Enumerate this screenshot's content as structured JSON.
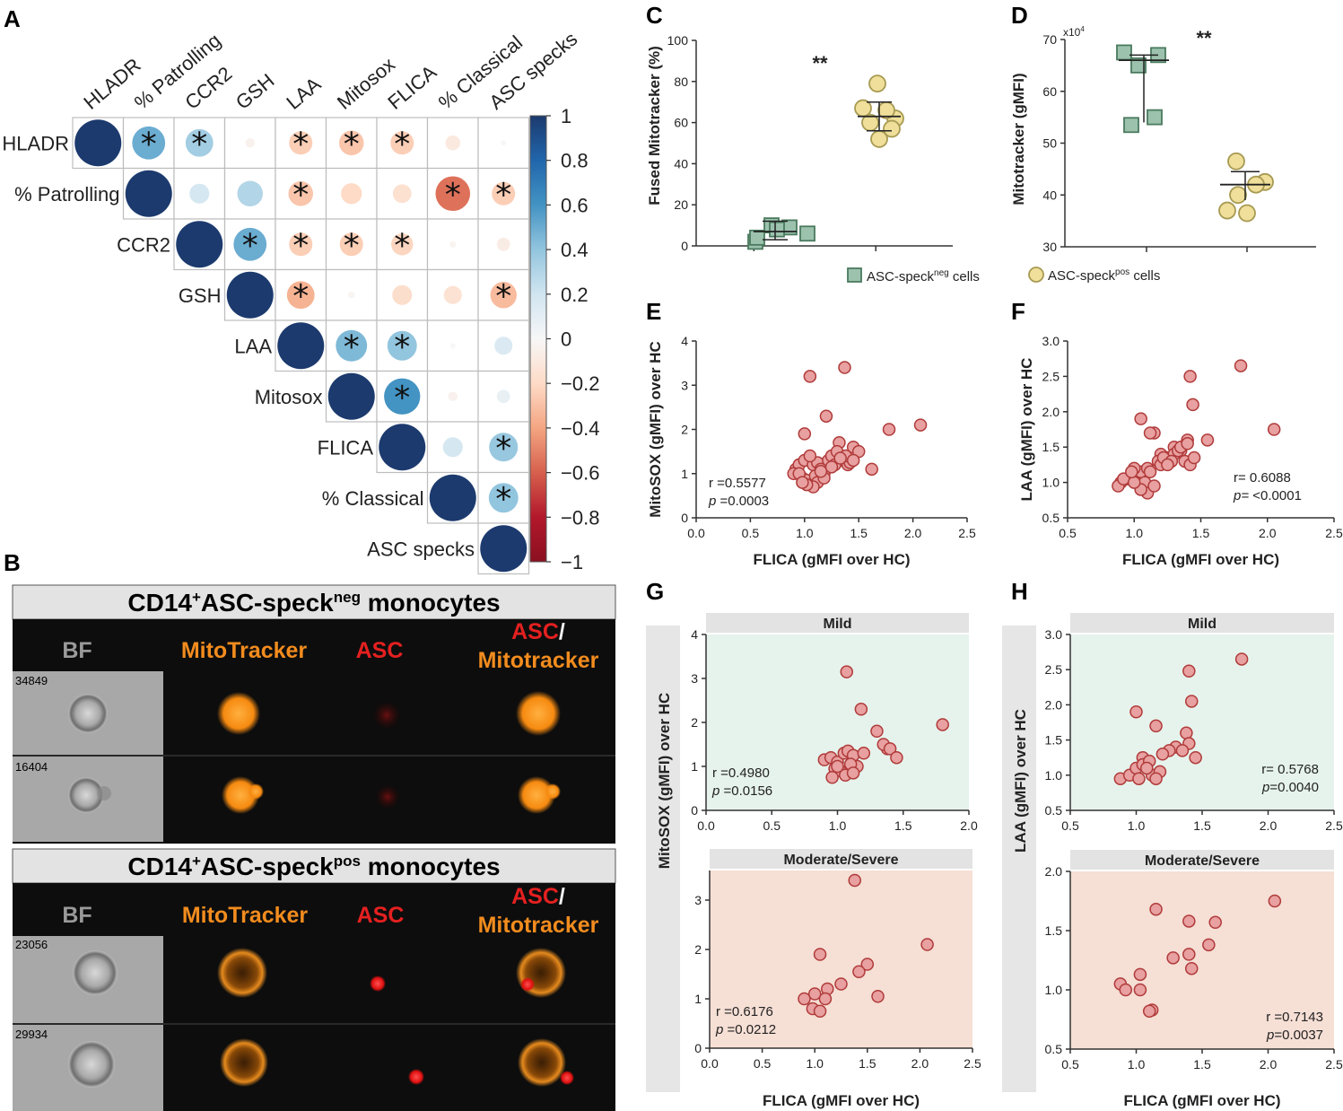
{
  "panel_labels": {
    "A": "A",
    "B": "B",
    "C": "C",
    "D": "D",
    "E": "E",
    "F": "F",
    "G": "G",
    "H": "H"
  },
  "chart_data": [
    {
      "id": "A",
      "type": "heatmap",
      "variables": [
        "HLADR",
        "% Patrolling",
        "CCR2",
        "GSH",
        "LAA",
        "Mitosox",
        "FLICA",
        "% Classical",
        "ASC specks"
      ],
      "correlations": [
        [
          1.0,
          0.5,
          0.35,
          -0.04,
          -0.25,
          -0.28,
          -0.25,
          -0.1,
          0.0
        ],
        [
          0.5,
          1.0,
          0.18,
          0.3,
          -0.28,
          -0.2,
          -0.16,
          -0.55,
          -0.25
        ],
        [
          0.35,
          0.18,
          1.0,
          0.5,
          -0.25,
          -0.25,
          -0.22,
          -0.02,
          -0.08
        ],
        [
          -0.04,
          0.3,
          0.5,
          1.0,
          -0.35,
          -0.02,
          -0.18,
          -0.15,
          -0.32
        ],
        [
          -0.25,
          -0.28,
          -0.25,
          -0.35,
          1.0,
          0.45,
          0.4,
          0.0,
          0.15
        ],
        [
          -0.28,
          -0.2,
          -0.25,
          -0.02,
          0.45,
          1.0,
          0.6,
          -0.04,
          0.08
        ],
        [
          -0.25,
          -0.16,
          -0.22,
          -0.18,
          0.4,
          0.6,
          1.0,
          0.18,
          0.38
        ],
        [
          -0.1,
          -0.55,
          -0.02,
          -0.15,
          0.0,
          -0.04,
          0.18,
          1.0,
          0.4
        ],
        [
          0.0,
          -0.25,
          -0.08,
          -0.32,
          0.15,
          0.08,
          0.38,
          0.4,
          1.0
        ]
      ],
      "significant": [
        [
          0,
          1
        ],
        [
          0,
          2
        ],
        [
          0,
          4
        ],
        [
          0,
          5
        ],
        [
          0,
          6
        ],
        [
          1,
          4
        ],
        [
          1,
          7
        ],
        [
          1,
          8
        ],
        [
          2,
          3
        ],
        [
          2,
          4
        ],
        [
          2,
          5
        ],
        [
          2,
          6
        ],
        [
          3,
          4
        ],
        [
          3,
          8
        ],
        [
          4,
          5
        ],
        [
          4,
          6
        ],
        [
          5,
          6
        ],
        [
          6,
          8
        ],
        [
          7,
          8
        ]
      ],
      "marker": "*",
      "colorbar_ticks": [
        "1",
        "0.8",
        "0.6",
        "0.4",
        "0.2",
        "0",
        "−0.2",
        "−0.4",
        "−0.6",
        "−0.8",
        "−1"
      ],
      "colorbar_range": [
        -1,
        1
      ],
      "colors": {
        "positive": "#1c3a6e",
        "negative": "#8a1020",
        "neutral": "#f7f7f7"
      }
    },
    {
      "id": "C",
      "type": "scatter",
      "ylabel": "Fused Mitotracker (%)",
      "yticks": [
        "0",
        "20",
        "40",
        "60",
        "80",
        "100"
      ],
      "ylim": [
        0,
        100
      ],
      "significance": "**",
      "groups": [
        {
          "name": "ASC-speck neg cells",
          "values": [
            2,
            10,
            9,
            6,
            4,
            8
          ],
          "mean": 7,
          "sd_low": 3,
          "sd_high": 12
        },
        {
          "name": "ASC-speck pos cells",
          "values": [
            79,
            67,
            62,
            60,
            57,
            52,
            66
          ],
          "mean": 63,
          "sd_low": 56,
          "sd_high": 70
        }
      ]
    },
    {
      "id": "D",
      "type": "scatter",
      "ylabel": "Mitotracker (gMFI)",
      "yticks": [
        "30",
        "40",
        "50",
        "60",
        "70"
      ],
      "ylim": [
        30,
        70
      ],
      "scale_note": "x10",
      "scale_exp": "4",
      "significance": "**",
      "groups": [
        {
          "name": "ASC-speck neg cells",
          "values": [
            67.5,
            67,
            65,
            53.5,
            55
          ],
          "mean": 66,
          "sd_low": 54,
          "sd_high": 67
        },
        {
          "name": "ASC-speck pos cells",
          "values": [
            46.5,
            42.5,
            40,
            37,
            36.5,
            42
          ],
          "mean": 42,
          "sd_low": 39,
          "sd_high": 44.5
        }
      ],
      "legend": [
        {
          "base": "ASC-speck",
          "sup": "neg",
          "tail": " cells"
        },
        {
          "base": "ASC-speck",
          "sup": "pos",
          "tail": " cells"
        }
      ]
    },
    {
      "id": "E",
      "type": "scatter",
      "xlabel": "FLICA (gMFI over HC)",
      "ylabel": "MitoSOX (gMFI) over HC",
      "xticks": [
        "0.0",
        "0.5",
        "1.0",
        "1.5",
        "2.0",
        "2.5"
      ],
      "yticks": [
        "0",
        "1",
        "2",
        "3",
        "4"
      ],
      "xlim": [
        0,
        2.5
      ],
      "ylim": [
        0,
        4
      ],
      "stats": {
        "r": "r =0.5577",
        "p_label": "p",
        "p_value": " =0.0003"
      },
      "x": [
        1.05,
        1.37,
        1.78,
        2.07,
        1.2,
        1.0,
        1.32,
        1.45,
        1.5,
        1.62,
        0.92,
        0.95,
        1.0,
        1.08,
        1.12,
        1.15,
        1.18,
        1.22,
        1.25,
        1.3,
        1.35,
        1.4,
        1.42,
        0.9,
        0.98,
        1.02,
        1.1,
        1.05,
        0.95,
        1.12,
        1.18,
        1.28,
        1.38,
        1.45,
        1.08,
        1.02,
        0.98,
        1.15,
        1.25,
        1.33
      ],
      "y": [
        3.2,
        3.4,
        2.0,
        2.1,
        2.3,
        1.9,
        1.7,
        1.6,
        1.5,
        1.1,
        1.1,
        1.2,
        1.3,
        1.2,
        1.25,
        1.1,
        1.0,
        1.3,
        1.4,
        1.5,
        1.3,
        1.2,
        1.25,
        1.0,
        0.9,
        0.85,
        0.95,
        1.4,
        1.0,
        0.8,
        0.9,
        1.2,
        1.4,
        1.3,
        0.7,
        0.75,
        0.8,
        1.05,
        1.15,
        1.35
      ]
    },
    {
      "id": "F",
      "type": "scatter",
      "xlabel": "FLICA (gMFI over HC)",
      "ylabel": "LAA (gMFI) over HC",
      "xticks": [
        "0.5",
        "1.0",
        "1.5",
        "2.0",
        "2.5"
      ],
      "yticks": [
        "0.5",
        "1.0",
        "1.5",
        "2.0",
        "2.5",
        "3.0"
      ],
      "xlim": [
        0.5,
        2.5
      ],
      "ylim": [
        0.5,
        3.0
      ],
      "stats": {
        "r": "r=  0.6088",
        "p_label": "p= ",
        "p_value": "<0.0001"
      },
      "x": [
        1.8,
        1.42,
        1.44,
        1.05,
        1.15,
        1.4,
        2.05,
        1.55,
        1.3,
        1.35,
        1.2,
        0.9,
        0.95,
        1.0,
        1.05,
        1.1,
        1.12,
        1.18,
        1.25,
        1.3,
        1.33,
        1.38,
        1.42,
        1.45,
        0.88,
        0.92,
        1.0,
        1.08,
        1.1,
        1.2,
        1.22,
        1.28,
        1.35,
        1.4,
        1.15,
        1.05,
        1.0,
        0.98,
        1.12,
        1.25
      ],
      "y": [
        2.65,
        2.5,
        2.1,
        1.9,
        1.7,
        1.6,
        1.75,
        1.6,
        1.5,
        1.45,
        1.4,
        1.0,
        1.05,
        1.1,
        1.15,
        1.2,
        1.15,
        1.3,
        1.35,
        1.4,
        1.45,
        1.3,
        1.25,
        1.35,
        0.95,
        1.05,
        1.2,
        1.0,
        0.85,
        1.25,
        1.35,
        1.3,
        1.5,
        1.55,
        0.95,
        0.9,
        1.0,
        1.15,
        1.7,
        1.25
      ]
    },
    {
      "id": "G",
      "type": "scatter",
      "xlabel": "FLICA (gMFI over HC)",
      "ylabel": "MitoSOX (gMFI) over HC",
      "facets": [
        {
          "title": "Mild",
          "xticks": [
            "0.0",
            "0.5",
            "1.0",
            "1.5",
            "2.0"
          ],
          "yticks": [
            "0",
            "1",
            "2",
            "3",
            "4"
          ],
          "xlim": [
            0,
            2
          ],
          "ylim": [
            0,
            4
          ],
          "stats": {
            "r": "r =0.4980",
            "p_label": "p",
            "p_value": " =0.0156"
          },
          "x": [
            1.07,
            1.18,
            1.38,
            1.8,
            1.3,
            0.9,
            0.95,
            1.0,
            1.05,
            1.08,
            1.12,
            1.15,
            1.2,
            1.35,
            1.4,
            1.45,
            0.98,
            1.02,
            1.1,
            1.06,
            0.96,
            1.0,
            1.12
          ],
          "y": [
            3.15,
            2.3,
            1.4,
            1.95,
            1.8,
            1.15,
            1.2,
            1.1,
            1.3,
            1.35,
            1.25,
            1.0,
            1.3,
            1.5,
            1.4,
            1.2,
            0.95,
            0.9,
            1.05,
            0.8,
            0.75,
            1.0,
            0.85
          ]
        },
        {
          "title": "Moderate/Severe",
          "xticks": [
            "0.0",
            "0.5",
            "1.0",
            "1.5",
            "2.0",
            "2.5"
          ],
          "yticks": [
            "0",
            "1",
            "2",
            "3"
          ],
          "xlim": [
            0,
            2.5
          ],
          "ylim": [
            0,
            3.6
          ],
          "stats": {
            "r": "r =0.6176",
            "p_label": "p",
            "p_value": " =0.0212"
          },
          "x": [
            1.38,
            2.07,
            1.05,
            1.5,
            1.25,
            1.42,
            1.6,
            1.12,
            0.9,
            0.98,
            1.05,
            1.1,
            1.0
          ],
          "y": [
            3.4,
            2.1,
            1.9,
            1.7,
            1.3,
            1.55,
            1.05,
            1.2,
            1.0,
            0.8,
            0.75,
            1.0,
            1.1
          ]
        }
      ]
    },
    {
      "id": "H",
      "type": "scatter",
      "xlabel": "FLICA (gMFI over HC)",
      "ylabel": "LAA (gMFI) over HC",
      "facets": [
        {
          "title": "Mild",
          "xticks": [
            "0.5",
            "1.0",
            "1.5",
            "2.0",
            "2.5"
          ],
          "yticks": [
            "0.5",
            "1.0",
            "1.5",
            "2.0",
            "2.5",
            "3.0"
          ],
          "xlim": [
            0.5,
            2.5
          ],
          "ylim": [
            0.5,
            3.0
          ],
          "stats": {
            "r": "r= 0.5768",
            "p_label": "p",
            "p_value": "=0.0040"
          },
          "x": [
            1.8,
            1.4,
            1.42,
            1.0,
            1.15,
            1.38,
            1.4,
            1.3,
            1.25,
            1.2,
            1.05,
            0.88,
            0.95,
            1.0,
            1.05,
            1.1,
            1.12,
            1.18,
            1.35,
            1.45,
            1.02,
            1.08,
            1.15
          ],
          "y": [
            2.65,
            2.48,
            2.05,
            1.9,
            1.7,
            1.6,
            1.45,
            1.4,
            1.35,
            1.3,
            1.25,
            0.95,
            1.0,
            1.1,
            1.15,
            1.2,
            1.0,
            1.05,
            1.35,
            1.25,
            0.95,
            1.1,
            0.95
          ]
        },
        {
          "title": "Moderate/Severe",
          "xticks": [
            "0.5",
            "1.0",
            "1.5",
            "2.0",
            "2.5"
          ],
          "yticks": [
            "0.5",
            "1.0",
            "1.5",
            "2.0"
          ],
          "xlim": [
            0.5,
            2.5
          ],
          "ylim": [
            0.5,
            2.0
          ],
          "stats": {
            "r": "r =0.7143",
            "p_label": "p",
            "p_value": "=0.0037"
          },
          "x": [
            2.05,
            1.15,
            1.4,
            1.6,
            1.55,
            1.4,
            1.42,
            1.28,
            1.03,
            0.88,
            0.92,
            1.03,
            1.12,
            1.1
          ],
          "y": [
            1.75,
            1.68,
            1.58,
            1.57,
            1.38,
            1.3,
            1.18,
            1.27,
            1.13,
            1.05,
            1.0,
            1.0,
            0.83,
            0.82
          ]
        }
      ]
    }
  ],
  "panel_b": {
    "groups": [
      {
        "title_pre": "CD14",
        "title_sup": "+",
        "title_mid": "ASC-speck",
        "title_sup2": "neg",
        "title_post": " monocytes",
        "cells": [
          {
            "id": "34849"
          },
          {
            "id": "16404"
          }
        ]
      },
      {
        "title_pre": "CD14",
        "title_sup": "+",
        "title_mid": "ASC-speck",
        "title_sup2": "pos",
        "title_post": " monocytes",
        "cells": [
          {
            "id": "23056"
          },
          {
            "id": "29934"
          }
        ]
      }
    ],
    "channels": {
      "bf": "BF",
      "mito": "MitoTracker",
      "asc": "ASC",
      "merge_a": "ASC",
      "merge_slash": "/",
      "merge_b": "Mitotracker"
    }
  }
}
